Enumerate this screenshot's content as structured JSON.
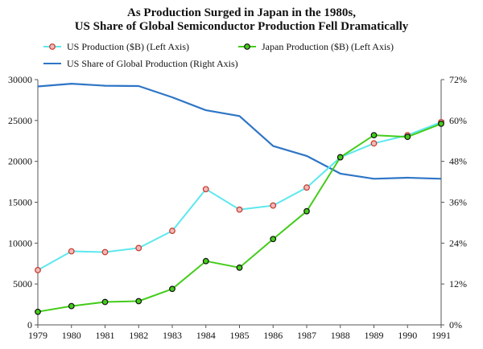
{
  "chart_data": {
    "type": "line",
    "title_line1": "As Production Surged in Japan in the 1980s,",
    "title_line2": "US Share of Global Semiconductor Production Fell Dramatically",
    "x": [
      "1979",
      "1980",
      "1981",
      "1982",
      "1983",
      "1984",
      "1985",
      "1986",
      "1987",
      "1988",
      "1989",
      "1990",
      "1991"
    ],
    "left_axis": {
      "ylim": [
        0,
        30000
      ],
      "ticks": [
        "0",
        "5000",
        "10000",
        "15000",
        "20000",
        "25000",
        "30000"
      ]
    },
    "right_axis": {
      "ylim": [
        0,
        72
      ],
      "ticks": [
        "0%",
        "12%",
        "24%",
        "36%",
        "48%",
        "60%",
        "72%"
      ]
    },
    "series": [
      {
        "name": "US Production ($B) (Left Axis)",
        "axis": "left",
        "color": "#5ce8ee",
        "marker_fill": "#f4b8b8",
        "marker_stroke": "#c0392b",
        "values": [
          6700,
          9000,
          8900,
          9400,
          11500,
          16600,
          14100,
          14600,
          16800,
          20500,
          22200,
          23200,
          24800
        ]
      },
      {
        "name": "Japan Production ($B) (Left Axis)",
        "axis": "left",
        "color": "#44cc1a",
        "marker_fill": "#44cc1a",
        "marker_stroke": "#111111",
        "values": [
          1600,
          2300,
          2800,
          2900,
          4400,
          7800,
          7000,
          10500,
          13900,
          20500,
          23200,
          23000,
          24600
        ]
      },
      {
        "name": "US Share of Global Production (Right Axis)",
        "axis": "right",
        "color": "#2e75c6",
        "marker_fill": null,
        "marker_stroke": null,
        "values": [
          70.0,
          70.8,
          70.2,
          70.1,
          66.8,
          63.0,
          61.3,
          52.5,
          49.6,
          44.4,
          42.9,
          43.2,
          42.9
        ]
      }
    ],
    "legend_position": "top-left",
    "grid": false
  }
}
